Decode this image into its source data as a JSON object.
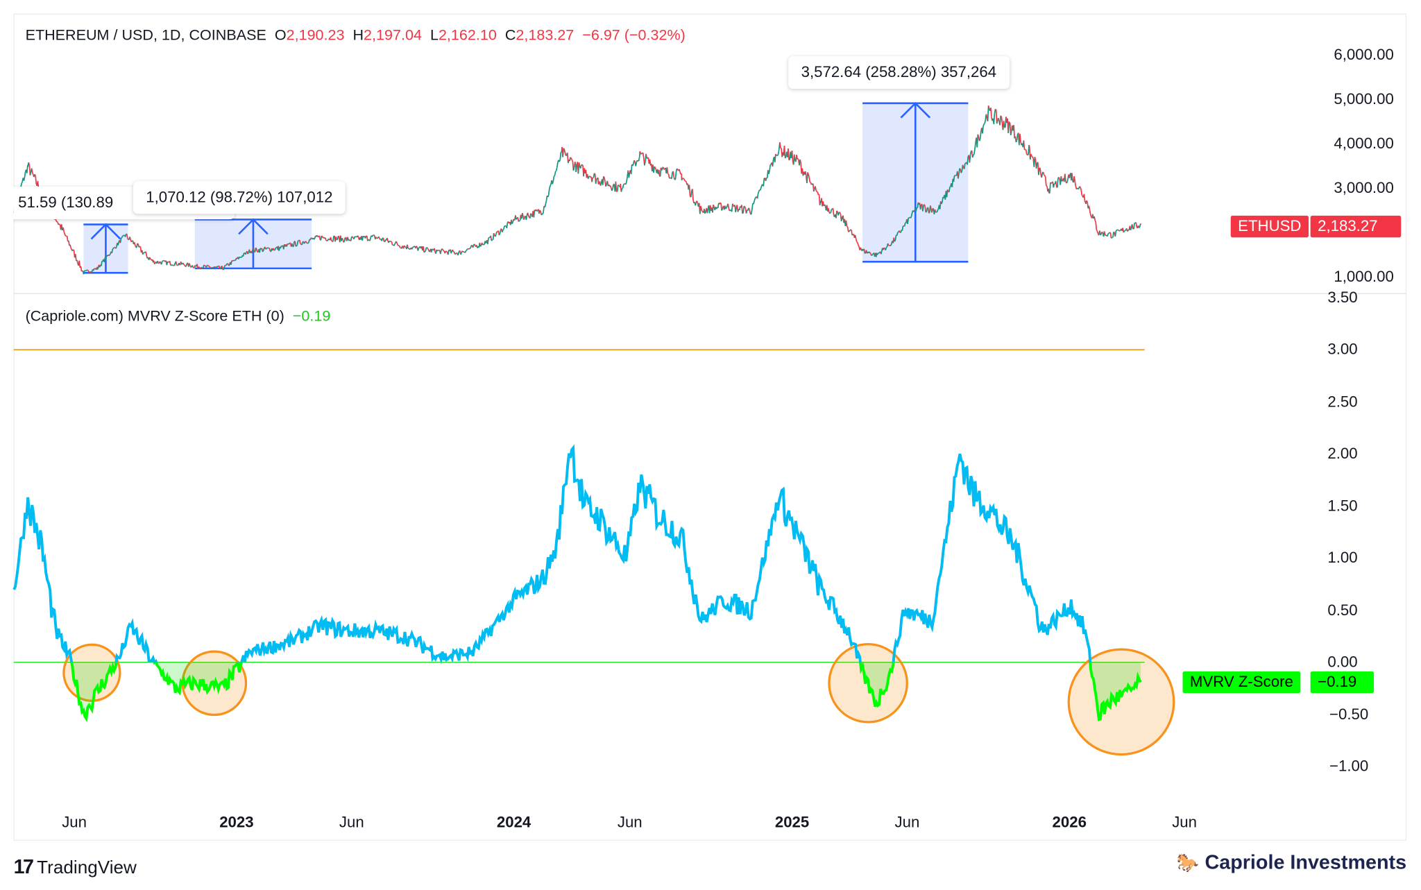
{
  "header": {
    "symbol": "ETHEREUM / USD, 1D, COINBASE",
    "open_label": "O",
    "open": "2,190.23",
    "high_label": "H",
    "high": "2,197.04",
    "low_label": "L",
    "low": "2,162.10",
    "close_label": "C",
    "close": "2,183.27",
    "change": "−6.97 (−0.32%)"
  },
  "indicator": {
    "title": "(Capriole.com) MVRV Z-Score ETH (0)",
    "value": "−0.19"
  },
  "price_tag": {
    "name": "ETHUSD",
    "value": "2,183.27"
  },
  "mvrv_tag": {
    "name": "MVRV Z-Score",
    "value": "−0.19"
  },
  "measurements": [
    {
      "text": "51.59 (130.89"
    },
    {
      "text": "1,070.12 (98.72%) 107,012"
    },
    {
      "text": "3,572.64 (258.28%) 357,264"
    }
  ],
  "brand": {
    "left": "TradingView",
    "right": "Capriole Investments"
  },
  "colors": {
    "up": "#089981",
    "down": "#f23645",
    "mvrv_above": "#00bcf2",
    "mvrv_below": "#00ff00",
    "threshold": "#f5a623",
    "circle": "#f7931a",
    "measure": "#2962ff"
  },
  "chart_data": [
    {
      "type": "line",
      "title": "ETHEREUM / USD, 1D, COINBASE",
      "x_unit": "decimal year",
      "ylim": [
        1000,
        6000
      ],
      "yticks": [
        "6,000.00",
        "5,000.00",
        "4,000.00",
        "3,000.00",
        "1,000.00"
      ],
      "x": [
        2022.2,
        2022.25,
        2022.3,
        2022.38,
        2022.45,
        2022.5,
        2022.6,
        2022.7,
        2022.8,
        2022.85,
        2022.95,
        2023.05,
        2023.15,
        2023.3,
        2023.4,
        2023.5,
        2023.6,
        2023.7,
        2023.8,
        2023.9,
        2024.0,
        2024.1,
        2024.17,
        2024.22,
        2024.3,
        2024.38,
        2024.45,
        2024.52,
        2024.6,
        2024.67,
        2024.75,
        2024.85,
        2024.95,
        2025.02,
        2025.1,
        2025.18,
        2025.25,
        2025.3,
        2025.36,
        2025.45,
        2025.52,
        2025.58,
        2025.64,
        2025.7,
        2025.78,
        2025.85,
        2025.92,
        2026.0,
        2026.05,
        2026.1,
        2026.15,
        2026.2,
        2026.25
      ],
      "values": [
        2550,
        3500,
        2900,
        2000,
        1100,
        1200,
        1950,
        1350,
        1300,
        1250,
        1200,
        1600,
        1650,
        1900,
        1850,
        1900,
        1700,
        1600,
        1550,
        1800,
        2300,
        2500,
        3800,
        3500,
        3200,
        3000,
        3750,
        3400,
        3300,
        2500,
        2600,
        2500,
        3900,
        3600,
        2700,
        2300,
        1600,
        1500,
        1800,
        2600,
        2500,
        3200,
        3700,
        4700,
        4400,
        3800,
        3000,
        3300,
        2800,
        2000,
        1950,
        2100,
        2183
      ]
    },
    {
      "type": "line",
      "title": "(Capriole.com) MVRV Z-Score ETH (0)",
      "x_unit": "decimal year",
      "ylim": [
        -1.25,
        3.5
      ],
      "threshold": 3.0,
      "yticks": [
        "3.50",
        "3.00",
        "2.50",
        "2.00",
        "1.50",
        "1.00",
        "0.50",
        "0.00",
        "−0.50",
        "−1.00"
      ],
      "x": [
        2022.2,
        2022.25,
        2022.3,
        2022.35,
        2022.4,
        2022.45,
        2022.52,
        2022.58,
        2022.62,
        2022.7,
        2022.78,
        2022.85,
        2022.95,
        2023.05,
        2023.2,
        2023.3,
        2023.4,
        2023.5,
        2023.6,
        2023.75,
        2023.85,
        2024.0,
        2024.1,
        2024.15,
        2024.2,
        2024.25,
        2024.3,
        2024.4,
        2024.45,
        2024.52,
        2024.6,
        2024.67,
        2024.75,
        2024.85,
        2024.95,
        2025.02,
        2025.1,
        2025.2,
        2025.25,
        2025.3,
        2025.35,
        2025.4,
        2025.5,
        2025.55,
        2025.6,
        2025.65,
        2025.7,
        2025.8,
        2025.9,
        2026.0,
        2026.05,
        2026.1,
        2026.15,
        2026.2,
        2026.25
      ],
      "values": [
        0.7,
        1.55,
        1.1,
        0.3,
        0.05,
        -0.5,
        -0.2,
        0.05,
        0.35,
        0.0,
        -0.25,
        -0.2,
        -0.25,
        0.1,
        0.2,
        0.35,
        0.3,
        0.3,
        0.25,
        0.05,
        0.1,
        0.6,
        0.8,
        1.1,
        2.1,
        1.5,
        1.4,
        1.0,
        1.7,
        1.4,
        1.2,
        0.4,
        0.6,
        0.5,
        1.6,
        1.2,
        0.7,
        0.3,
        -0.1,
        -0.4,
        -0.1,
        0.5,
        0.4,
        1.2,
        2.0,
        1.6,
        1.5,
        1.1,
        0.3,
        0.55,
        0.3,
        -0.5,
        -0.35,
        -0.3,
        -0.19
      ]
    }
  ]
}
